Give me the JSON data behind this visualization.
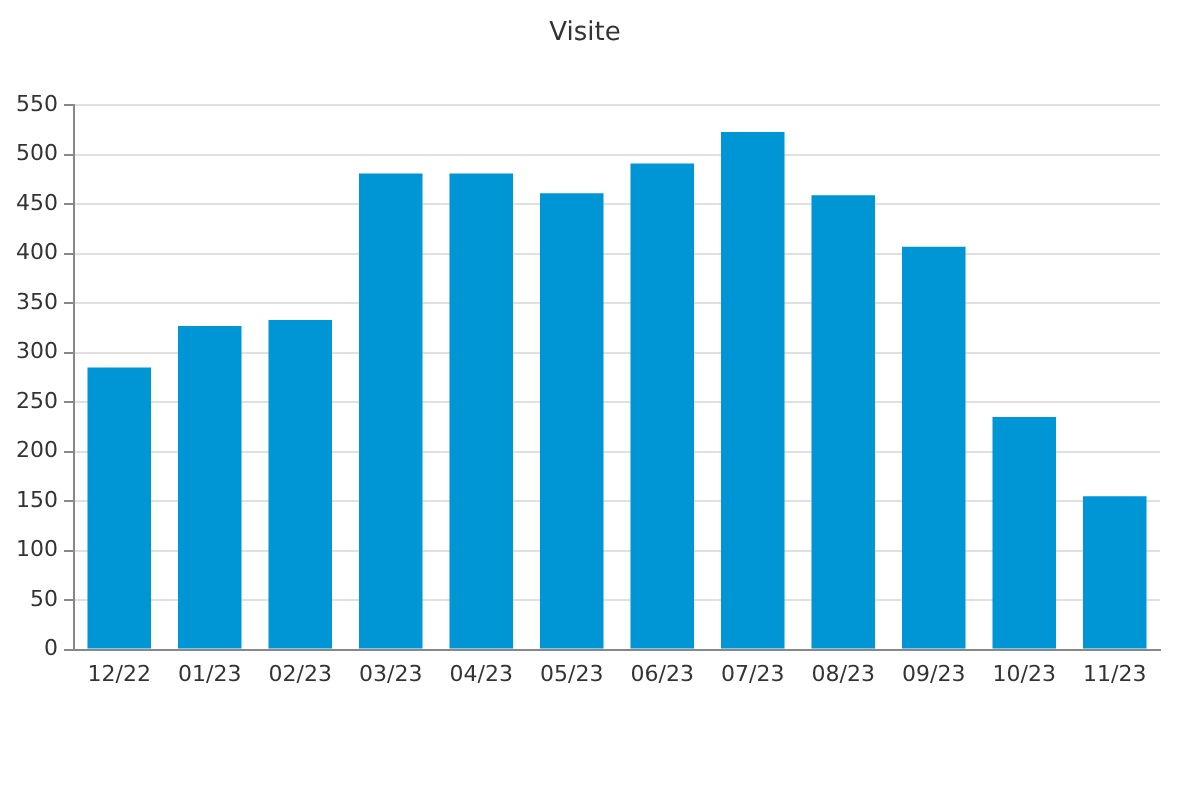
{
  "chart_data": {
    "type": "bar",
    "title": "Visite",
    "categories": [
      "12/22",
      "01/23",
      "02/23",
      "03/23",
      "04/23",
      "05/23",
      "06/23",
      "07/23",
      "08/23",
      "09/23",
      "10/23",
      "11/23"
    ],
    "values": [
      285,
      327,
      333,
      481,
      481,
      461,
      491,
      523,
      459,
      407,
      235,
      155
    ],
    "color": "#0096d6",
    "ylim": [
      0,
      550
    ],
    "yticks": [
      0,
      50,
      100,
      150,
      200,
      250,
      300,
      350,
      400,
      450,
      500,
      550
    ],
    "grid": "y"
  }
}
